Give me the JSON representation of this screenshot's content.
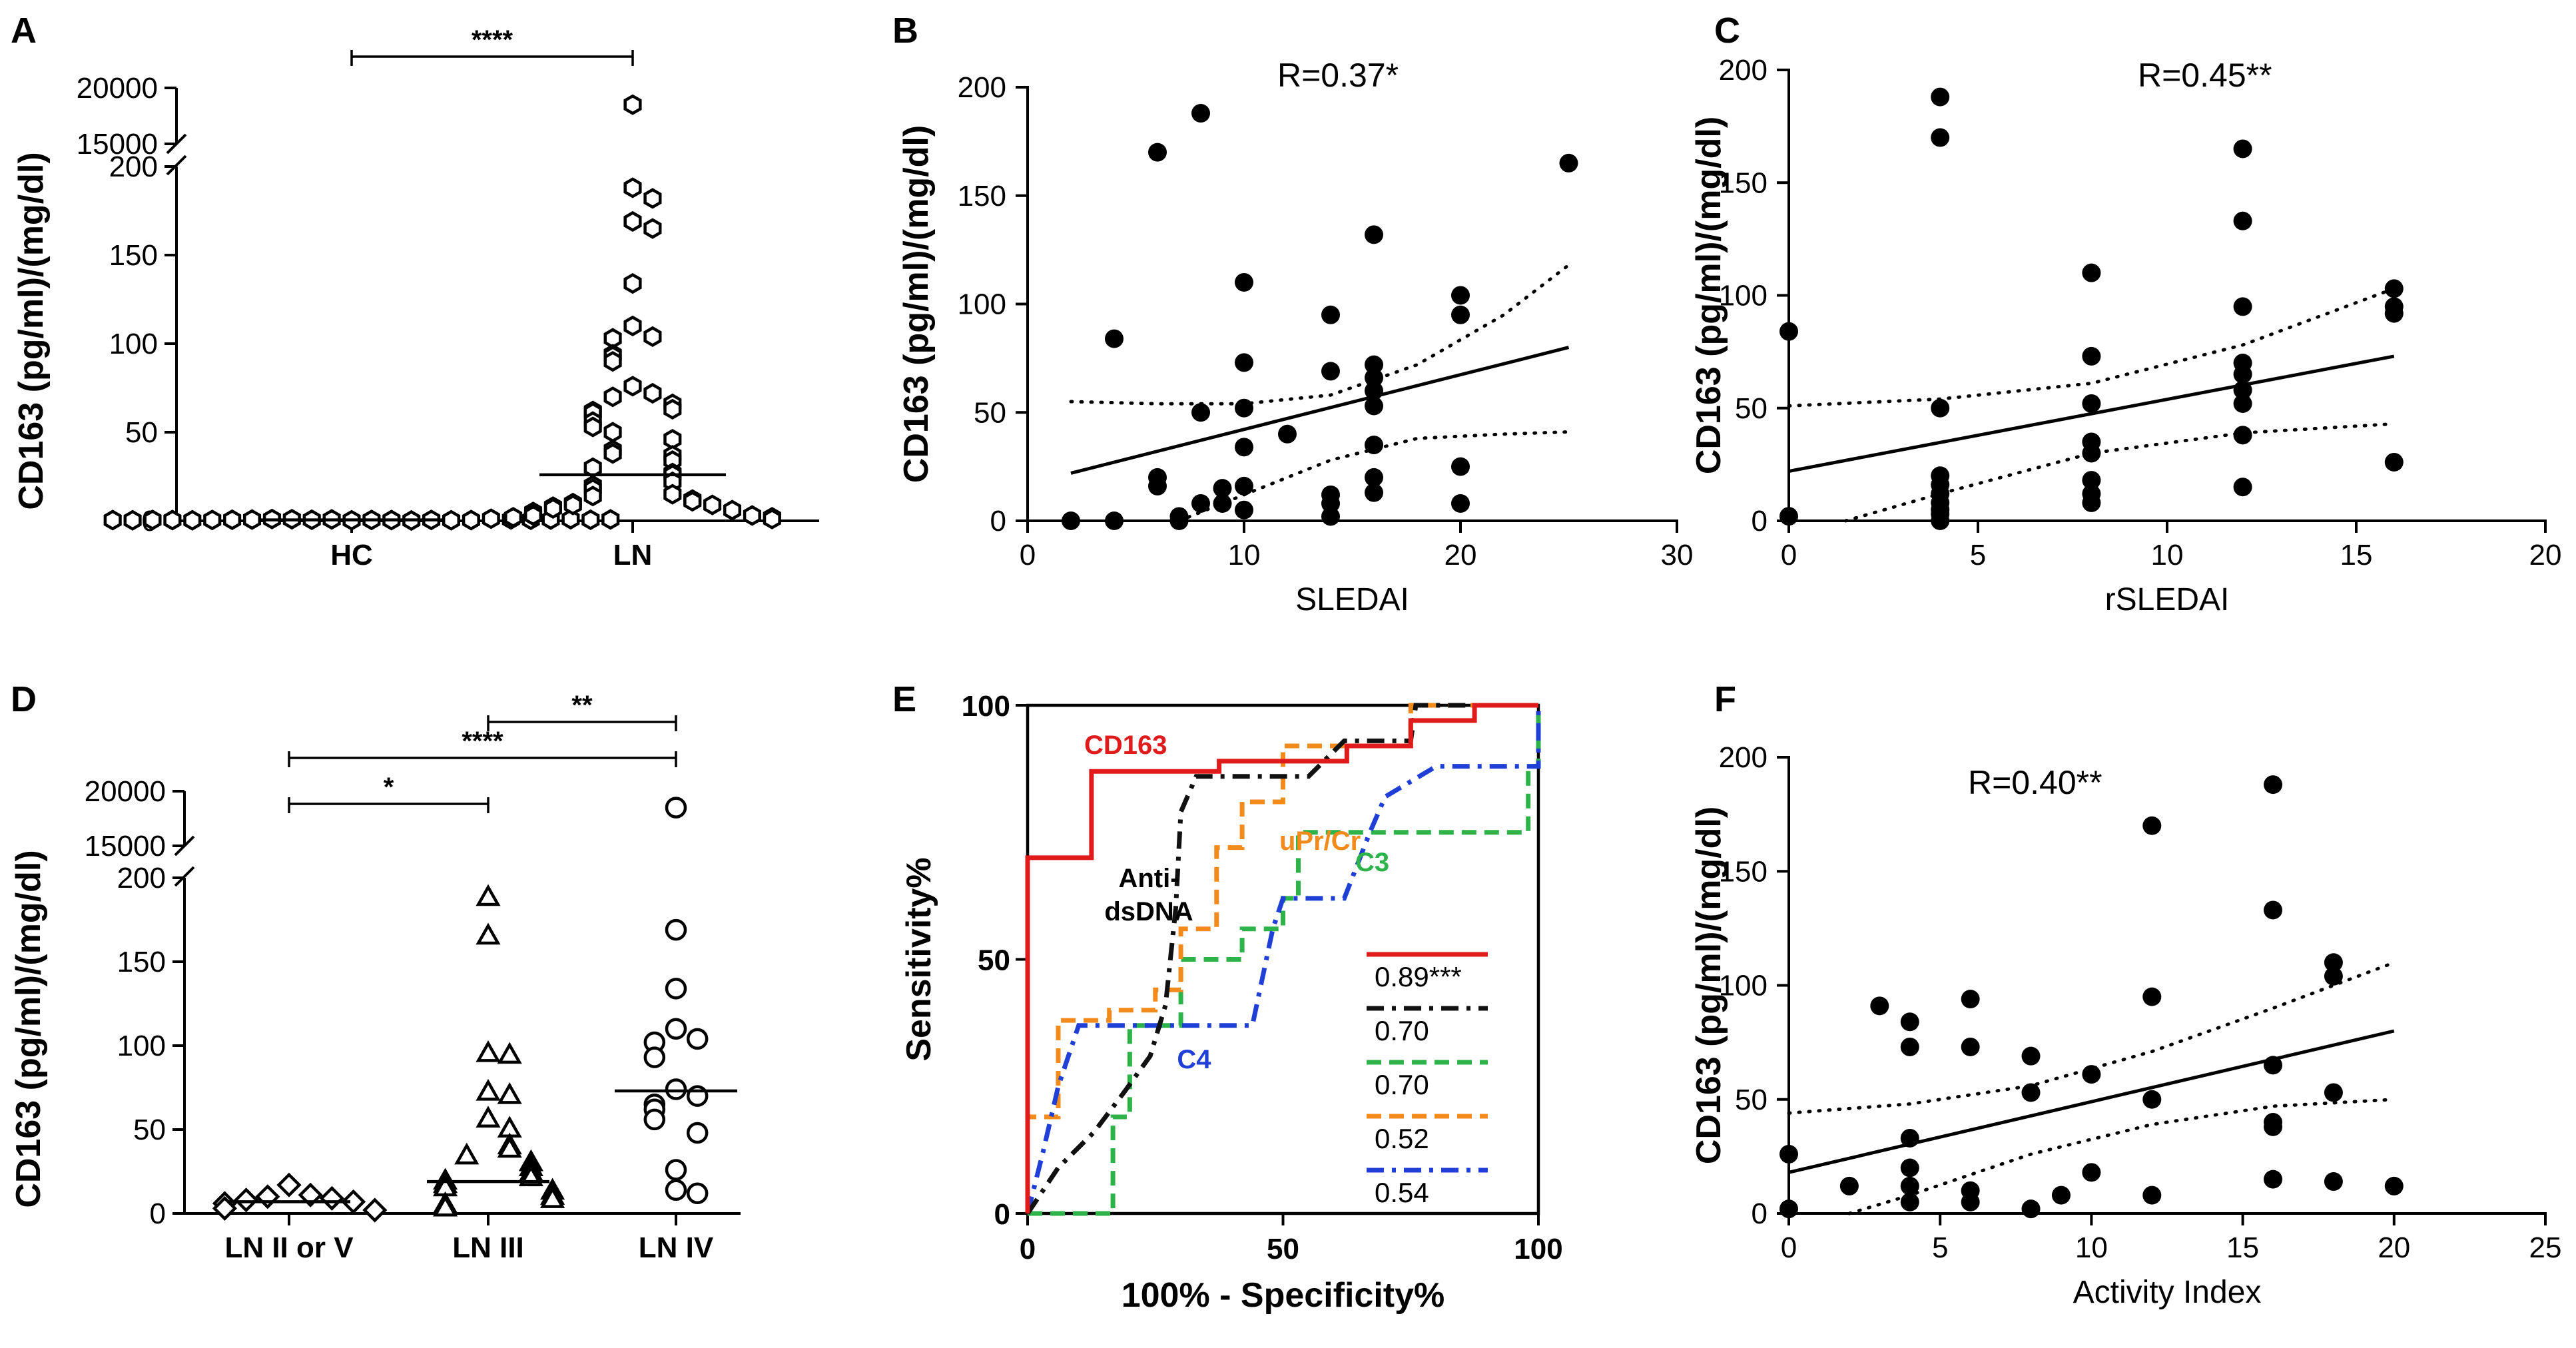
{
  "chart_data": [
    {
      "id": "A",
      "panel_label": "A",
      "type": "scatter",
      "style": "dot-plot",
      "ylabel": "CD163 (pg/ml)/(mg/dl)",
      "categories": [
        "HC",
        "LN"
      ],
      "yticks_lower": [
        0,
        50,
        100,
        150,
        200
      ],
      "yticks_upper": [
        15000,
        20000
      ],
      "ylim_lower": [
        0,
        200
      ],
      "ylim_upper": [
        15000,
        20000
      ],
      "marker": "hexagon-open",
      "median_lines": [
        0.5,
        26
      ],
      "significance": [
        {
          "between": [
            "HC",
            "LN"
          ],
          "label": "****"
        }
      ],
      "series": [
        {
          "name": "HC",
          "values": [
            0.3,
            0.5,
            0.8,
            0.4,
            0.6,
            0.2,
            0.9,
            0.5,
            1.0,
            0.3,
            0.7,
            0.4,
            0.6,
            1.2,
            0.5,
            0.8,
            0.3,
            0.6,
            0.4,
            0.7,
            0.5,
            0.9,
            0.3,
            0.6,
            0.4,
            0.8
          ]
        },
        {
          "name": "LN",
          "values": [
            18500,
            188,
            182,
            169,
            165,
            134,
            110,
            104,
            103,
            94,
            93,
            90,
            76,
            72,
            70,
            66,
            63,
            62,
            61,
            56,
            53,
            50,
            46,
            40,
            38,
            37,
            34,
            30,
            27,
            26,
            22,
            20,
            18,
            15,
            14,
            12,
            11,
            10,
            9,
            9,
            8,
            7,
            6,
            5,
            4,
            3,
            3,
            2,
            2,
            1
          ]
        }
      ]
    },
    {
      "id": "B",
      "panel_label": "B",
      "type": "scatter",
      "xlabel": "SLEDAI",
      "ylabel": "CD163 (pg/ml)/(mg/dl)",
      "xlim": [
        0,
        30
      ],
      "ylim": [
        0,
        200
      ],
      "xticks": [
        0,
        10,
        20,
        30
      ],
      "yticks": [
        0,
        50,
        100,
        150,
        200
      ],
      "annotation": "R=0.37*",
      "regression": {
        "x": [
          2,
          25
        ],
        "y": [
          22,
          80
        ]
      },
      "ci_upper": [
        [
          2,
          55
        ],
        [
          6,
          54
        ],
        [
          10,
          54
        ],
        [
          14,
          58
        ],
        [
          18,
          72
        ],
        [
          22,
          95
        ],
        [
          25,
          118
        ]
      ],
      "ci_lower": [
        [
          7,
          0
        ],
        [
          10,
          12
        ],
        [
          14,
          28
        ],
        [
          18,
          38
        ],
        [
          22,
          40
        ],
        [
          25,
          41
        ]
      ],
      "x": [
        2,
        4,
        4,
        6,
        6,
        6,
        7,
        7,
        8,
        8,
        8,
        9,
        9,
        10,
        10,
        10,
        10,
        10,
        10,
        12,
        14,
        14,
        14,
        14,
        14,
        16,
        16,
        16,
        16,
        16,
        16,
        16,
        16,
        20,
        20,
        20,
        20,
        25
      ],
      "y": [
        0,
        0,
        84,
        170,
        20,
        16,
        2,
        0,
        188,
        50,
        8,
        15,
        8,
        110,
        73,
        52,
        34,
        16,
        5,
        40,
        95,
        69,
        12,
        8,
        2,
        132,
        72,
        66,
        60,
        53,
        35,
        20,
        13,
        104,
        95,
        25,
        8,
        165
      ]
    },
    {
      "id": "C",
      "panel_label": "C",
      "type": "scatter",
      "xlabel": "rSLEDAI",
      "ylabel": "CD163 (pg/ml)/(mg/dl)",
      "xlim": [
        0,
        20
      ],
      "ylim": [
        0,
        200
      ],
      "xticks": [
        0,
        5,
        10,
        15,
        20
      ],
      "yticks": [
        0,
        50,
        100,
        150,
        200
      ],
      "annotation": "R=0.45**",
      "regression": {
        "x": [
          0,
          16
        ],
        "y": [
          22,
          73
        ]
      },
      "ci_upper": [
        [
          0,
          51
        ],
        [
          4,
          54
        ],
        [
          8,
          61
        ],
        [
          12,
          78
        ],
        [
          16,
          103
        ]
      ],
      "ci_lower": [
        [
          1.5,
          0
        ],
        [
          4,
          12
        ],
        [
          8,
          30
        ],
        [
          12,
          39
        ],
        [
          16,
          43
        ]
      ],
      "x": [
        0,
        0,
        4,
        4,
        4,
        4,
        4,
        4,
        4,
        4,
        4,
        4,
        8,
        8,
        8,
        8,
        8,
        8,
        8,
        8,
        12,
        12,
        12,
        12,
        12,
        12,
        12,
        12,
        12,
        16,
        16,
        16,
        16
      ],
      "y": [
        84,
        2,
        188,
        170,
        50,
        20,
        16,
        12,
        8,
        5,
        3,
        0,
        110,
        73,
        52,
        35,
        30,
        18,
        12,
        8,
        165,
        133,
        95,
        70,
        65,
        58,
        52,
        38,
        15,
        103,
        95,
        92,
        26
      ]
    },
    {
      "id": "D",
      "panel_label": "D",
      "type": "scatter",
      "style": "dot-plot",
      "ylabel": "CD163 (pg/ml)/(mg/dl)",
      "categories": [
        "LN II or V",
        "LN III",
        "LN IV"
      ],
      "yticks_lower": [
        0,
        50,
        100,
        150,
        200
      ],
      "yticks_upper": [
        15000,
        20000
      ],
      "ylim_lower": [
        0,
        200
      ],
      "ylim_upper": [
        15000,
        20000
      ],
      "median_lines": [
        7,
        19,
        73
      ],
      "significance": [
        {
          "between": [
            "LN III",
            "LN IV"
          ],
          "label": "**"
        },
        {
          "between": [
            "LN II or V",
            "LN IV"
          ],
          "label": "****"
        },
        {
          "between": [
            "LN II or V",
            "LN III"
          ],
          "label": "*"
        }
      ],
      "series": [
        {
          "name": "LN II or V",
          "marker": "diamond-open",
          "values": [
            17,
            11,
            10,
            9,
            8,
            7,
            6,
            3,
            2
          ]
        },
        {
          "name": "LN III",
          "marker": "triangle-open",
          "values": [
            188,
            165,
            95,
            94,
            72,
            70,
            56,
            50,
            40,
            38,
            34,
            30,
            27,
            24,
            21,
            19,
            17,
            15,
            13,
            10,
            8,
            5,
            3
          ]
        },
        {
          "name": "LN IV",
          "marker": "circle-open",
          "values": [
            18500,
            169,
            134,
            110,
            104,
            102,
            93,
            74,
            70,
            65,
            62,
            56,
            48,
            26,
            14,
            12
          ]
        }
      ]
    },
    {
      "id": "E",
      "panel_label": "E",
      "type": "line",
      "style": "roc",
      "xlabel": "100% - Specificity%",
      "ylabel": "Sensitivity%",
      "xlim": [
        0,
        100
      ],
      "ylim": [
        0,
        100
      ],
      "xticks": [
        0,
        50,
        100
      ],
      "yticks": [
        0,
        50,
        100
      ],
      "annotations": [
        "CD163",
        "uPr/Cr",
        "Anti-dsDNA",
        "C3",
        "C4"
      ],
      "series": [
        {
          "name": "CD163",
          "auc_label": "0.89***",
          "color": "#e01b1b",
          "dash": "solid",
          "points": [
            [
              0,
              0
            ],
            [
              0,
              70
            ],
            [
              12.5,
              70
            ],
            [
              12.5,
              87
            ],
            [
              37.5,
              87
            ],
            [
              37.5,
              89
            ],
            [
              62.5,
              89
            ],
            [
              62.5,
              92
            ],
            [
              75,
              92
            ],
            [
              75,
              97
            ],
            [
              87.5,
              97
            ],
            [
              87.5,
              100
            ],
            [
              100,
              100
            ]
          ]
        },
        {
          "name": "Anti-dsDNA",
          "auc_label": "0.70",
          "color": "#111111",
          "dash": "dashdot",
          "points": [
            [
              0,
              0
            ],
            [
              6,
              9
            ],
            [
              13,
              16
            ],
            [
              19,
              24
            ],
            [
              24,
              31
            ],
            [
              27,
              41
            ],
            [
              29,
              60
            ],
            [
              30,
              79
            ],
            [
              33,
              86
            ],
            [
              55,
              86
            ],
            [
              62,
              93
            ],
            [
              75,
              93
            ],
            [
              76,
              100
            ],
            [
              100,
              100
            ]
          ]
        },
        {
          "name": "C3",
          "auc_label": "0.70",
          "color": "#2db34a",
          "dash": "dashed",
          "points": [
            [
              0,
              0
            ],
            [
              16.7,
              0
            ],
            [
              16.7,
              19
            ],
            [
              20,
              19
            ],
            [
              20,
              37
            ],
            [
              30,
              37
            ],
            [
              30,
              50
            ],
            [
              42,
              50
            ],
            [
              42,
              56
            ],
            [
              50,
              56
            ],
            [
              50,
              62
            ],
            [
              53,
              62
            ],
            [
              53,
              75
            ],
            [
              98,
              75
            ],
            [
              98,
              88
            ],
            [
              100,
              88
            ],
            [
              100,
              100
            ]
          ]
        },
        {
          "name": "uPr/Cr",
          "auc_label": "0.52",
          "color": "#f28a1c",
          "dash": "dashed",
          "points": [
            [
              0,
              0
            ],
            [
              0,
              19
            ],
            [
              6,
              19
            ],
            [
              6,
              38
            ],
            [
              16,
              38
            ],
            [
              16,
              40
            ],
            [
              25,
              40
            ],
            [
              25,
              44
            ],
            [
              30,
              44
            ],
            [
              30,
              56
            ],
            [
              37,
              56
            ],
            [
              37,
              72
            ],
            [
              42,
              72
            ],
            [
              42,
              81
            ],
            [
              50,
              81
            ],
            [
              50,
              92
            ],
            [
              75,
              92
            ],
            [
              75,
              100
            ],
            [
              100,
              100
            ]
          ]
        },
        {
          "name": "C4",
          "auc_label": "0.54",
          "color": "#1f3fd6",
          "dash": "dashdot",
          "points": [
            [
              0,
              0
            ],
            [
              3,
              12
            ],
            [
              6,
              25
            ],
            [
              10,
              37
            ],
            [
              44,
              37
            ],
            [
              48,
              56
            ],
            [
              50,
              62
            ],
            [
              62,
              62
            ],
            [
              67,
              75
            ],
            [
              70,
              82
            ],
            [
              80,
              88
            ],
            [
              100,
              88
            ],
            [
              100,
              100
            ]
          ]
        }
      ]
    },
    {
      "id": "F",
      "panel_label": "F",
      "type": "scatter",
      "xlabel": "Activity Index",
      "ylabel": "CD163 (pg/ml)/(mg/dl)",
      "xlim": [
        0,
        25
      ],
      "ylim": [
        0,
        200
      ],
      "xticks": [
        0,
        5,
        10,
        15,
        20,
        25
      ],
      "yticks": [
        0,
        50,
        100,
        150,
        200
      ],
      "annotation": "R=0.40**",
      "regression": {
        "x": [
          0,
          20
        ],
        "y": [
          18,
          80
        ]
      },
      "ci_upper": [
        [
          0,
          44
        ],
        [
          4,
          48
        ],
        [
          8,
          56
        ],
        [
          12,
          71
        ],
        [
          16,
          90
        ],
        [
          20,
          110
        ]
      ],
      "ci_lower": [
        [
          2,
          0
        ],
        [
          4,
          8
        ],
        [
          8,
          26
        ],
        [
          12,
          39
        ],
        [
          16,
          47
        ],
        [
          20,
          50
        ]
      ],
      "x": [
        0,
        0,
        2,
        3,
        4,
        4,
        4,
        4,
        4,
        4,
        6,
        6,
        6,
        6,
        8,
        8,
        8,
        9,
        10,
        10,
        12,
        12,
        12,
        12,
        16,
        16,
        16,
        16,
        16,
        16,
        18,
        18,
        18,
        18,
        20
      ],
      "y": [
        26,
        2,
        12,
        91,
        84,
        73,
        33,
        20,
        12,
        5,
        94,
        73,
        10,
        5,
        69,
        53,
        2,
        8,
        61,
        18,
        170,
        95,
        50,
        8,
        188,
        133,
        65,
        40,
        38,
        15,
        110,
        104,
        53,
        14,
        12
      ]
    }
  ]
}
